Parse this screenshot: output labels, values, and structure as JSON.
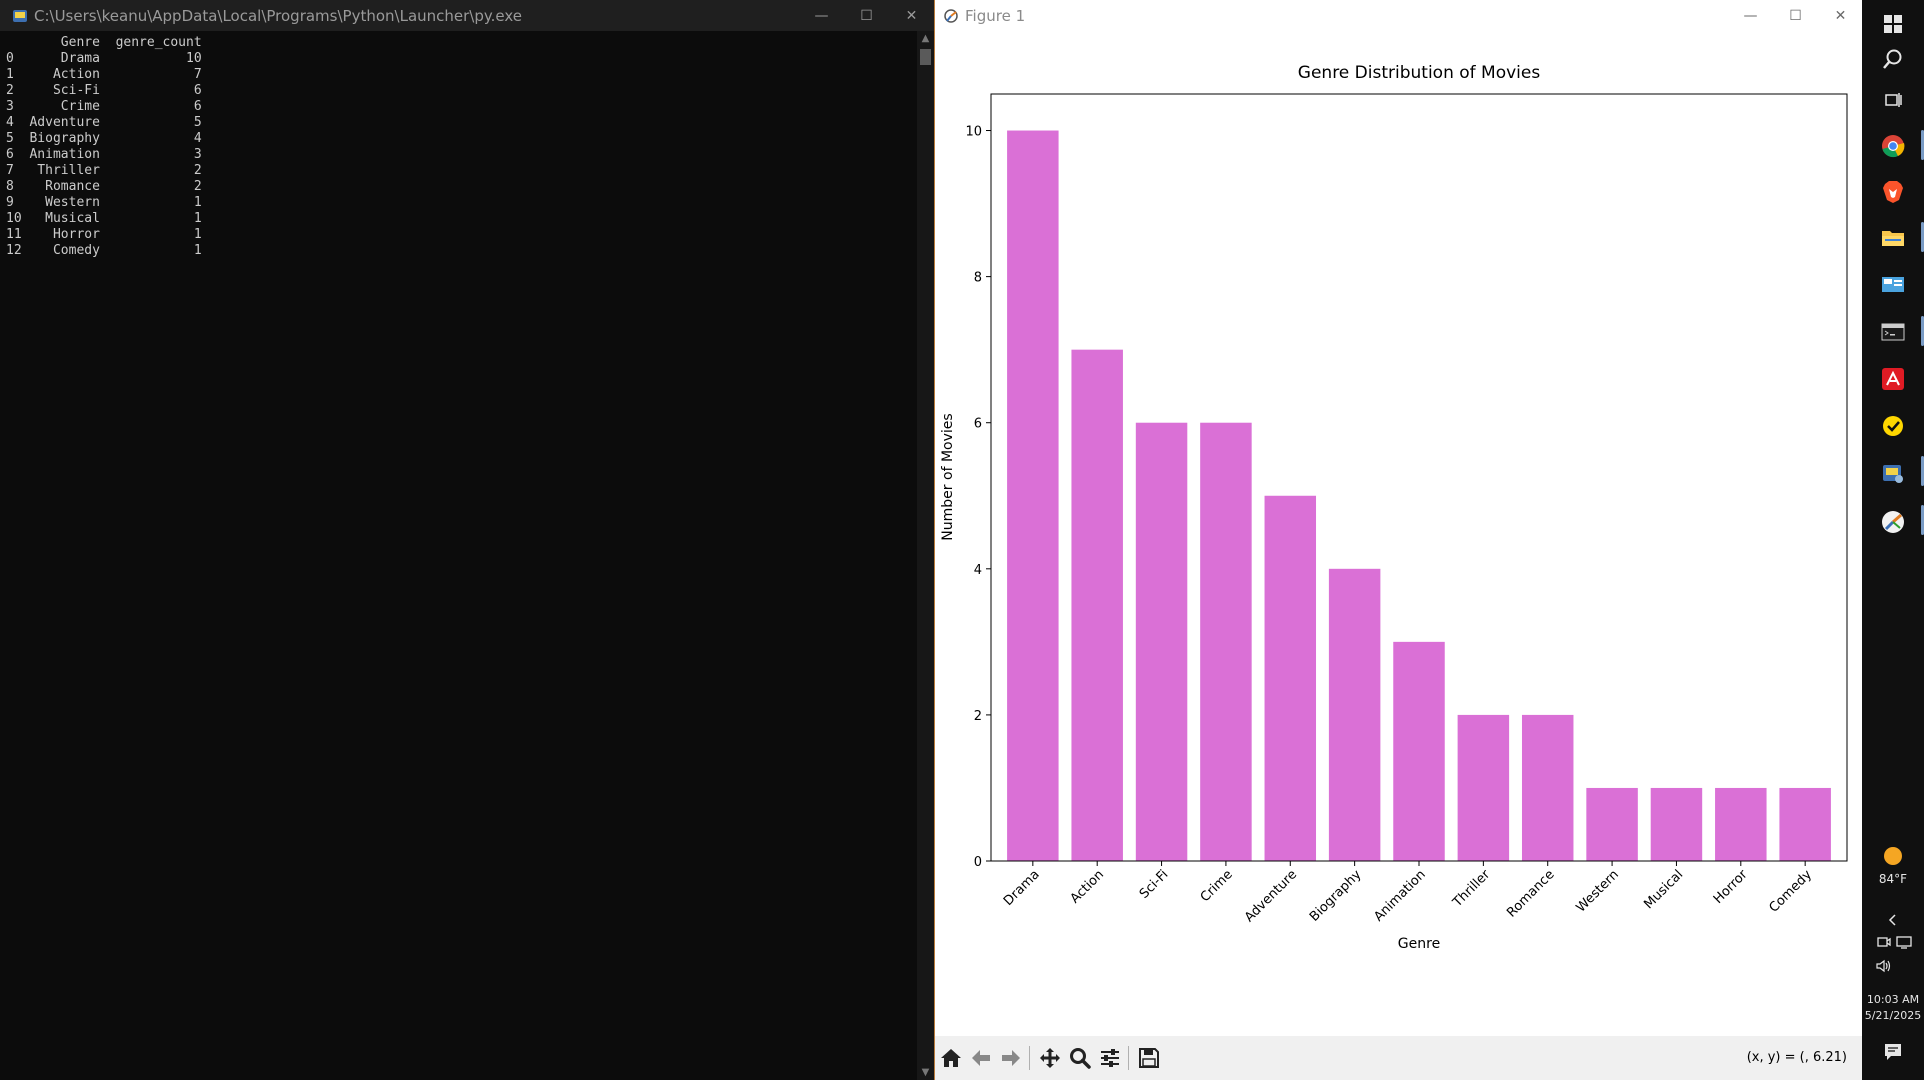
{
  "console": {
    "title": "C:\\Users\\keanu\\AppData\\Local\\Programs\\Python\\Launcher\\py.exe",
    "output_lines": [
      "       Genre  genre_count",
      "0      Drama           10",
      "1     Action            7",
      "2     Sci-Fi            6",
      "3      Crime            6",
      "4  Adventure            5",
      "5  Biography            4",
      "6  Animation            3",
      "7   Thriller            2",
      "8    Romance            2",
      "9    Western            1",
      "10   Musical            1",
      "11    Horror            1",
      "12    Comedy            1"
    ]
  },
  "figure": {
    "title": "Figure 1",
    "coords_readout": "(x, y) = (, 6.21)"
  },
  "chart_data": {
    "type": "bar",
    "title": "Genre Distribution of Movies",
    "xlabel": "Genre",
    "ylabel": "Number of Movies",
    "categories": [
      "Drama",
      "Action",
      "Sci-Fi",
      "Crime",
      "Adventure",
      "Biography",
      "Animation",
      "Thriller",
      "Romance",
      "Western",
      "Musical",
      "Horror",
      "Comedy"
    ],
    "values": [
      10,
      7,
      6,
      6,
      5,
      4,
      3,
      2,
      2,
      1,
      1,
      1,
      1
    ],
    "ylim": [
      0,
      10.5
    ],
    "yticks": [
      0,
      2,
      4,
      6,
      8,
      10
    ],
    "bar_color": "#da70d6",
    "grid": false
  },
  "taskbar": {
    "icons": [
      "windows-start-icon",
      "search-icon",
      "task-view-icon",
      "chrome-icon",
      "brave-icon",
      "file-explorer-icon",
      "control-panel-icon",
      "terminal-icon",
      "adobe-icon",
      "norton-icon",
      "python-launcher-icon",
      "matplotlib-icon"
    ],
    "weather_temp": "84°F",
    "time": "10:03 AM",
    "date": "5/21/2025"
  }
}
